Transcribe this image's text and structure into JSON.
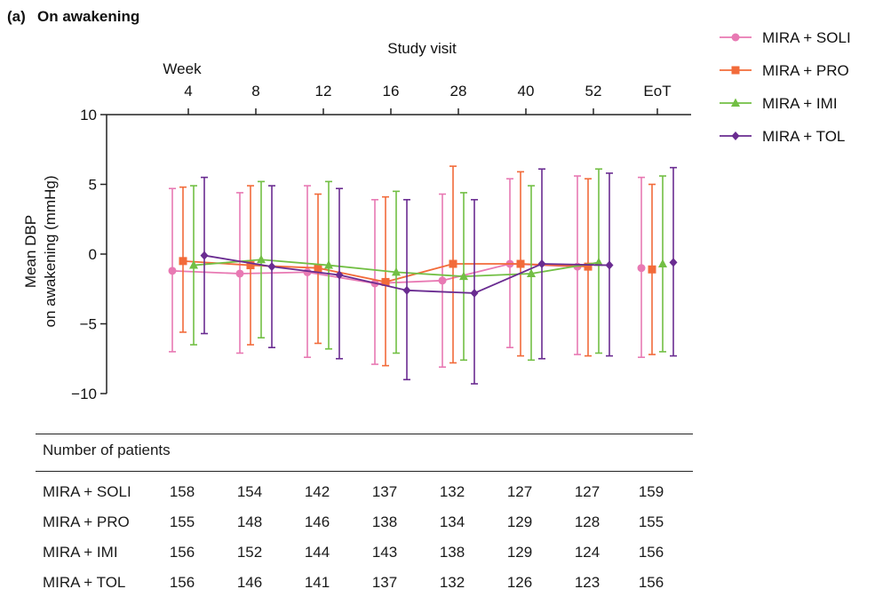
{
  "panel_label": "(a)",
  "panel_title": "On awakening",
  "chart_data": {
    "type": "line",
    "title": "On awakening",
    "x_title": "Study visit",
    "x_prefix": "Week",
    "categories": [
      "4",
      "8",
      "12",
      "16",
      "28",
      "40",
      "52",
      "EoT"
    ],
    "ylabel": [
      "Mean DBP",
      "on awakening (mmHg)"
    ],
    "ylim": [
      -10,
      10
    ],
    "yticks": [
      10,
      5,
      0,
      -5,
      -10
    ],
    "ytick_labels": [
      "10",
      "5",
      "0",
      "−5",
      "−10"
    ],
    "legend_position": "top-right",
    "error_bars": "mean ± SD",
    "series": [
      {
        "name": "MIRA + SOLI",
        "color": "#e879b3",
        "marker": "circle",
        "values": [
          -1.2,
          -1.4,
          -1.3,
          -2.1,
          -1.9,
          -0.7,
          -0.9,
          -1.0
        ],
        "lower": [
          -7.0,
          -7.1,
          -7.4,
          -7.9,
          -8.1,
          -6.7,
          -7.2,
          -7.4
        ],
        "upper": [
          4.7,
          4.4,
          4.9,
          3.9,
          4.3,
          5.4,
          5.6,
          5.5
        ]
      },
      {
        "name": "MIRA + PRO",
        "color": "#f26b3a",
        "marker": "square",
        "values": [
          -0.5,
          -0.8,
          -1.0,
          -2.0,
          -0.7,
          -0.7,
          -0.9,
          -1.1
        ],
        "lower": [
          -5.6,
          -6.5,
          -6.4,
          -8.0,
          -7.8,
          -7.3,
          -7.3,
          -7.2
        ],
        "upper": [
          4.8,
          4.9,
          4.3,
          4.1,
          6.3,
          5.9,
          5.4,
          5.0
        ]
      },
      {
        "name": "MIRA + IMI",
        "color": "#72bf44",
        "marker": "triangle",
        "values": [
          -0.8,
          -0.4,
          -0.8,
          -1.3,
          -1.6,
          -1.4,
          -0.6,
          -0.7
        ],
        "lower": [
          -6.5,
          -6.0,
          -6.8,
          -7.1,
          -7.6,
          -7.6,
          -7.1,
          -7.0
        ],
        "upper": [
          4.9,
          5.2,
          5.2,
          4.5,
          4.4,
          4.9,
          6.1,
          5.6
        ]
      },
      {
        "name": "MIRA + TOL",
        "color": "#6a2c91",
        "marker": "diamond",
        "values": [
          -0.1,
          -0.9,
          -1.5,
          -2.6,
          -2.8,
          -0.7,
          -0.8,
          -0.6
        ],
        "lower": [
          -5.7,
          -6.7,
          -7.5,
          -9.0,
          -9.3,
          -7.5,
          -7.3,
          -7.3
        ],
        "upper": [
          5.5,
          4.9,
          4.7,
          3.9,
          3.9,
          6.1,
          5.8,
          6.2
        ]
      }
    ]
  },
  "patients_table": {
    "title": "Number of patients",
    "rows": [
      {
        "label": "MIRA + SOLI",
        "values": [
          "158",
          "154",
          "142",
          "137",
          "132",
          "127",
          "127",
          "159"
        ]
      },
      {
        "label": "MIRA + PRO",
        "values": [
          "155",
          "148",
          "146",
          "138",
          "134",
          "129",
          "128",
          "155"
        ]
      },
      {
        "label": "MIRA + IMI",
        "values": [
          "156",
          "152",
          "144",
          "143",
          "138",
          "129",
          "124",
          "156"
        ]
      },
      {
        "label": "MIRA + TOL",
        "values": [
          "156",
          "146",
          "141",
          "137",
          "132",
          "126",
          "123",
          "156"
        ]
      }
    ]
  }
}
